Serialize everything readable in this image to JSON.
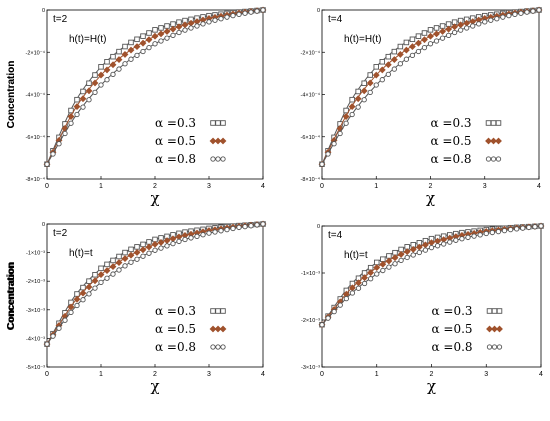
{
  "chart_data": [
    {
      "type": "line",
      "corner_label": "t=2",
      "function_label": "h(t)=H(t)",
      "ylabel": "Concentration",
      "xlabel": "χ",
      "xlim": [
        0,
        4
      ],
      "ylim": [
        -0.0008,
        0
      ],
      "xticks": [
        0,
        1,
        2,
        3,
        4
      ],
      "yticks": [
        -0.0008,
        -0.0006,
        -0.0004,
        -0.0002,
        0
      ],
      "ytick_labels": [
        "-8×10⁻⁴",
        "-6×10⁻⁴",
        "-4×10⁻⁴",
        "-2×10⁻⁴",
        "0"
      ],
      "xtick_labels": [
        "0",
        "1",
        "2",
        "3",
        "4"
      ],
      "legend_position": "bottom-right",
      "series": [
        {
          "name": "α =0.3",
          "marker": "square",
          "color": "#555555",
          "x": [
            0,
            0.5,
            1,
            1.5,
            2,
            2.5,
            3,
            3.5,
            4
          ],
          "y": [
            -0.00073,
            -0.000444,
            -0.000269,
            -0.000161,
            -9.4e-05,
            -5.3e-05,
            -2.7e-05,
            -1.1e-05,
            0
          ]
        },
        {
          "name": "α =0.5",
          "marker": "diamond",
          "color": "#a0522d",
          "x": [
            0,
            0.5,
            1,
            1.5,
            2,
            2.5,
            3,
            3.5,
            4
          ],
          "y": [
            -0.00073,
            -0.000476,
            -0.000308,
            -0.000198,
            -0.000124,
            -7.4e-05,
            -4e-05,
            -1.6e-05,
            0
          ]
        },
        {
          "name": "α =0.8",
          "marker": "circle",
          "color": "#555555",
          "x": [
            0,
            0.5,
            1,
            1.5,
            2,
            2.5,
            3,
            3.5,
            4
          ],
          "y": [
            -0.00073,
            -0.000512,
            -0.000355,
            -0.000242,
            -0.00016,
            -0.0001,
            -5.6e-05,
            -2.3e-05,
            0
          ]
        }
      ]
    },
    {
      "type": "line",
      "corner_label": "t=4",
      "function_label": "h(t)=H(t)",
      "ylabel": "Concentration",
      "xlabel": "χ",
      "xlim": [
        0,
        4
      ],
      "ylim": [
        -0.0008,
        0
      ],
      "xticks": [
        0,
        1,
        2,
        3,
        4
      ],
      "yticks": [
        -0.0008,
        -0.0006,
        -0.0004,
        -0.0002,
        0
      ],
      "ytick_labels": [
        "-8×10⁻⁴",
        "-6×10⁻⁴",
        "-4×10⁻⁴",
        "-2×10⁻⁴",
        "0"
      ],
      "xtick_labels": [
        "0",
        "1",
        "2",
        "3",
        "4"
      ],
      "legend_position": "bottom-right",
      "series": [
        {
          "name": "α =0.3",
          "marker": "square",
          "color": "#555555",
          "x": [
            0,
            0.5,
            1,
            1.5,
            2,
            2.5,
            3,
            3.5,
            4
          ],
          "y": [
            -0.00073,
            -0.000444,
            -0.000269,
            -0.000161,
            -9.4e-05,
            -5.3e-05,
            -2.7e-05,
            -1.1e-05,
            0
          ]
        },
        {
          "name": "α =0.5",
          "marker": "diamond",
          "color": "#a0522d",
          "x": [
            0,
            0.5,
            1,
            1.5,
            2,
            2.5,
            3,
            3.5,
            4
          ],
          "y": [
            -0.00073,
            -0.000476,
            -0.000308,
            -0.000198,
            -0.000124,
            -7.4e-05,
            -4e-05,
            -1.6e-05,
            0
          ]
        },
        {
          "name": "α =0.8",
          "marker": "circle",
          "color": "#555555",
          "x": [
            0,
            0.5,
            1,
            1.5,
            2,
            2.5,
            3,
            3.5,
            4
          ],
          "y": [
            -0.00073,
            -0.000512,
            -0.000355,
            -0.000242,
            -0.00016,
            -0.0001,
            -5.6e-05,
            -2.3e-05,
            0
          ]
        }
      ]
    },
    {
      "type": "line",
      "corner_label": "t=2",
      "function_label": "h(t)=t",
      "ylabel": "Concentration",
      "xlabel": "χ",
      "xlim": [
        0,
        4
      ],
      "ylim": [
        -0.005,
        0
      ],
      "xticks": [
        0,
        1,
        2,
        3,
        4
      ],
      "yticks": [
        -0.005,
        -0.004,
        -0.003,
        -0.002,
        -0.001,
        0
      ],
      "ytick_labels": [
        "-5×10⁻³",
        "-4×10⁻³",
        "-3×10⁻³",
        "-2×10⁻³",
        "-1×10⁻³",
        "0"
      ],
      "xtick_labels": [
        "0",
        "1",
        "2",
        "3",
        "4"
      ],
      "legend_position": "bottom-right",
      "series": [
        {
          "name": "α =0.3",
          "marker": "square",
          "color": "#555555",
          "x": [
            0,
            0.5,
            1,
            1.5,
            2,
            2.5,
            3,
            3.5,
            4
          ],
          "y": [
            -0.0042,
            -0.00256,
            -0.00155,
            -0.00093,
            -0.00054,
            -0.0003,
            -0.000155,
            -6.3e-05,
            0
          ]
        },
        {
          "name": "α =0.5",
          "marker": "diamond",
          "color": "#a0522d",
          "x": [
            0,
            0.5,
            1,
            1.5,
            2,
            2.5,
            3,
            3.5,
            4
          ],
          "y": [
            -0.0042,
            -0.00274,
            -0.00177,
            -0.00114,
            -0.00071,
            -0.00042,
            -0.00023,
            -9.5e-05,
            0
          ]
        },
        {
          "name": "α =0.8",
          "marker": "circle",
          "color": "#555555",
          "x": [
            0,
            0.5,
            1,
            1.5,
            2,
            2.5,
            3,
            3.5,
            4
          ],
          "y": [
            -0.0042,
            -0.00295,
            -0.00204,
            -0.00139,
            -0.00092,
            -0.00057,
            -0.00032,
            -0.000135,
            0
          ]
        }
      ]
    },
    {
      "type": "line",
      "corner_label": "t=4",
      "function_label": "h(t)=t",
      "ylabel": "Concentration",
      "xlabel": "χ",
      "xlim": [
        0,
        4
      ],
      "ylim": [
        -0.003,
        0
      ],
      "xticks": [
        0,
        1,
        2,
        3,
        4
      ],
      "yticks": [
        -0.003,
        -0.002,
        -0.001,
        0
      ],
      "ytick_labels": [
        "-3×10⁻³",
        "-2×10⁻³",
        "-1×10⁻³",
        "0"
      ],
      "xtick_labels": [
        "0",
        "1",
        "2",
        "3",
        "4"
      ],
      "legend_position": "bottom-right",
      "series": [
        {
          "name": "α =0.3",
          "marker": "square",
          "color": "#555555",
          "x": [
            0,
            0.5,
            1,
            1.5,
            2,
            2.5,
            3,
            3.5,
            4
          ],
          "y": [
            -0.0021,
            -0.00128,
            -0.000775,
            -0.000465,
            -0.00027,
            -0.00015,
            -7.75e-05,
            -3.15e-05,
            0
          ]
        },
        {
          "name": "α =0.5",
          "marker": "diamond",
          "color": "#a0522d",
          "x": [
            0,
            0.5,
            1,
            1.5,
            2,
            2.5,
            3,
            3.5,
            4
          ],
          "y": [
            -0.0021,
            -0.00137,
            -0.000885,
            -0.00057,
            -0.000355,
            -0.00021,
            -0.000115,
            -4.75e-05,
            0
          ]
        },
        {
          "name": "α =0.8",
          "marker": "circle",
          "color": "#555555",
          "x": [
            0,
            0.5,
            1,
            1.5,
            2,
            2.5,
            3,
            3.5,
            4
          ],
          "y": [
            -0.0021,
            -0.001475,
            -0.00102,
            -0.000695,
            -0.00046,
            -0.000285,
            -0.00016,
            -6.75e-05,
            0
          ]
        }
      ]
    }
  ]
}
